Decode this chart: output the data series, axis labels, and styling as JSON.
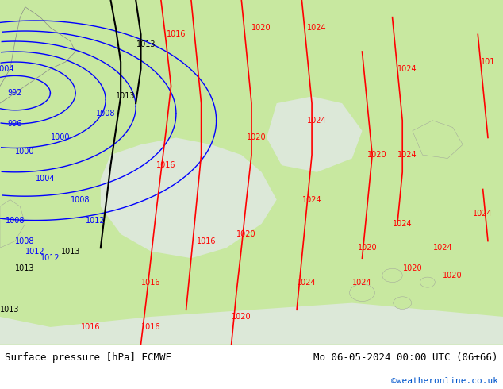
{
  "title_left": "Surface pressure [hPa] ECMWF",
  "title_right": "Mo 06-05-2024 00:00 UTC (06+66)",
  "credit": "©weatheronline.co.uk",
  "credit_color": "#0055cc",
  "land_color": "#c8e8a0",
  "sea_color": "#e0e8e0",
  "fig_width": 6.34,
  "fig_height": 4.9,
  "dpi": 100,
  "footer_fontsize": 9,
  "credit_fontsize": 8
}
